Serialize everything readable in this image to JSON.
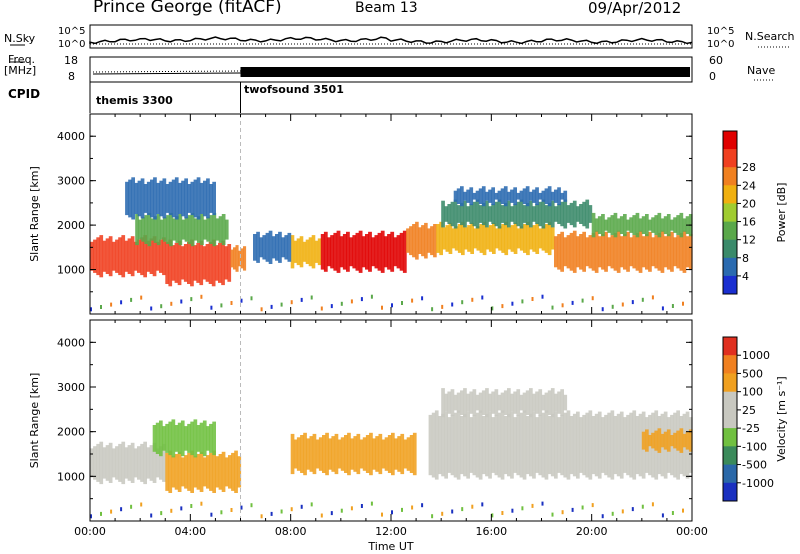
{
  "header": {
    "station": "Prince George (fitACF)",
    "beam": "Beam 13",
    "date": "09/Apr/2012"
  },
  "labels": {
    "nsky": "N.Sky",
    "nsearch": "N.Search",
    "freq_top": "Freq.",
    "freq_unit": "[MHz]",
    "nave": "Nave",
    "cpid": "CPID",
    "log_tick_hi": "10^5",
    "log_tick_lo": "10^0",
    "freq_tick_hi": "18",
    "freq_tick_lo": "8",
    "nave_tick_hi": "60",
    "nave_tick_lo": "0"
  },
  "cpid_segments": [
    {
      "name": "themis 3300",
      "start_hour": 0
    },
    {
      "name": "twofsound 3501",
      "start_hour": 6
    }
  ],
  "chart_data": [
    {
      "type": "heatmap",
      "panel": "power",
      "xlabel": "",
      "ylabel": "Slant Range [km]",
      "x_range_hours": [
        0,
        24
      ],
      "yticks": [
        1000,
        2000,
        3000,
        4000
      ],
      "ylim": [
        0,
        4500
      ],
      "colorbar": {
        "label": "Power [dB]",
        "ticks": [
          "4",
          "8",
          "12",
          "16",
          "20",
          "24",
          "28"
        ],
        "colors": [
          "#1a2fd0",
          "#2a6ab0",
          "#3a8a6a",
          "#5aa84a",
          "#a0cc30",
          "#f0b010",
          "#f08020",
          "#f04020",
          "#e00000"
        ]
      },
      "bands": [
        {
          "t0": 0.0,
          "t1": 3.0,
          "r0": 900,
          "r1": 1700,
          "level": 7
        },
        {
          "t0": 3.0,
          "t1": 5.6,
          "r0": 700,
          "r1": 1600,
          "level": 7
        },
        {
          "t0": 5.6,
          "t1": 6.2,
          "r0": 1000,
          "r1": 1500,
          "level": 6
        },
        {
          "t0": 1.8,
          "t1": 5.5,
          "r0": 1600,
          "r1": 2200,
          "level": 3
        },
        {
          "t0": 1.4,
          "t1": 5.0,
          "r0": 2200,
          "r1": 3000,
          "level": 1
        },
        {
          "t0": 8.0,
          "t1": 9.2,
          "r0": 1100,
          "r1": 1700,
          "level": 5
        },
        {
          "t0": 9.2,
          "t1": 12.6,
          "r0": 1000,
          "r1": 1800,
          "level": 8
        },
        {
          "t0": 12.6,
          "t1": 13.8,
          "r0": 1300,
          "r1": 2000,
          "level": 6
        },
        {
          "t0": 13.8,
          "t1": 18.5,
          "r0": 1400,
          "r1": 2000,
          "level": 5
        },
        {
          "t0": 18.5,
          "t1": 24.0,
          "r0": 1000,
          "r1": 1800,
          "level": 6
        },
        {
          "t0": 14.0,
          "t1": 20.0,
          "r0": 2000,
          "r1": 2500,
          "level": 2
        },
        {
          "t0": 14.5,
          "t1": 19.0,
          "r0": 2500,
          "r1": 2800,
          "level": 1
        },
        {
          "t0": 20.0,
          "t1": 24.0,
          "r0": 1800,
          "r1": 2200,
          "level": 3
        },
        {
          "t0": 6.5,
          "t1": 8.0,
          "r0": 1200,
          "r1": 1800,
          "level": 1
        }
      ]
    },
    {
      "type": "heatmap",
      "panel": "velocity",
      "xlabel": "Time UT",
      "ylabel": "Slant Range [km]",
      "x_range_hours": [
        0,
        24
      ],
      "xticks": [
        "00:00",
        "04:00",
        "08:00",
        "12:00",
        "16:00",
        "20:00",
        "00:00"
      ],
      "yticks": [
        1000,
        2000,
        3000,
        4000
      ],
      "ylim": [
        0,
        4500
      ],
      "colorbar": {
        "label": "Velocity [m s⁻¹]",
        "ticks": [
          "1000",
          "500",
          "100",
          "25",
          "-25",
          "-100",
          "-500",
          "-1000"
        ],
        "colors": [
          "#1a30c0",
          "#2a68a8",
          "#3a8a5a",
          "#70c040",
          "#c8c8c0",
          "#c8c8c0",
          "#f0a020",
          "#f08020",
          "#e03020"
        ]
      },
      "bands": [
        {
          "t0": 0.0,
          "t1": 3.0,
          "r0": 900,
          "r1": 1700,
          "level": 4
        },
        {
          "t0": 3.0,
          "t1": 6.0,
          "r0": 700,
          "r1": 1500,
          "level": 6
        },
        {
          "t0": 2.5,
          "t1": 5.0,
          "r0": 1500,
          "r1": 2200,
          "level": 3
        },
        {
          "t0": 8.0,
          "t1": 13.0,
          "r0": 1100,
          "r1": 1900,
          "level": 6
        },
        {
          "t0": 13.5,
          "t1": 24.0,
          "r0": 1000,
          "r1": 2400,
          "level": 4
        },
        {
          "t0": 14.0,
          "t1": 19.0,
          "r0": 2400,
          "r1": 2900,
          "level": 4
        },
        {
          "t0": 22.0,
          "t1": 24.0,
          "r0": 1600,
          "r1": 2000,
          "level": 6
        }
      ]
    }
  ]
}
